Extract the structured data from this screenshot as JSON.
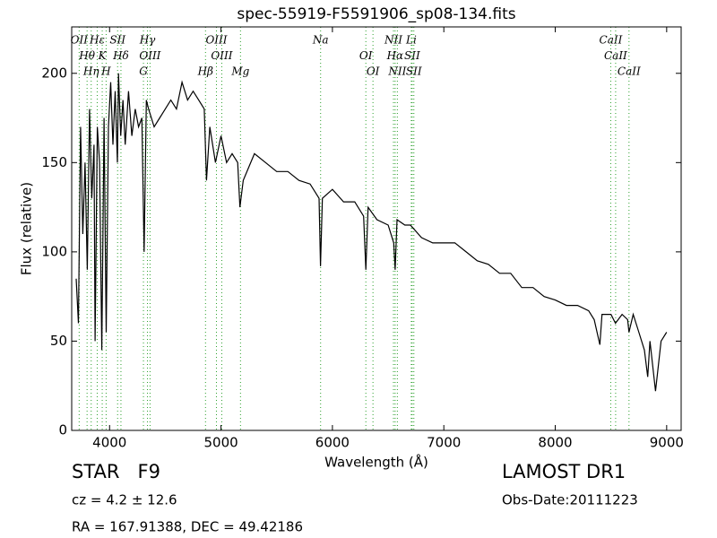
{
  "chart_data": {
    "type": "line",
    "title": "spec-55919-F5591906_sp08-134.fits",
    "xlabel": "Wavelength (Å)",
    "ylabel": "Flux (relative)",
    "xlim": [
      3660,
      9130
    ],
    "ylim": [
      0,
      226
    ],
    "xticks": [
      4000,
      5000,
      6000,
      7000,
      8000,
      9000
    ],
    "yticks": [
      0,
      50,
      100,
      150,
      200
    ],
    "color": "#000000",
    "line_color": "#2ca02c",
    "x": [
      3700,
      3720,
      3740,
      3760,
      3780,
      3800,
      3820,
      3840,
      3860,
      3870,
      3890,
      3910,
      3930,
      3950,
      3970,
      3990,
      4010,
      4030,
      4050,
      4070,
      4080,
      4100,
      4120,
      4140,
      4170,
      4200,
      4230,
      4260,
      4290,
      4310,
      4330,
      4350,
      4400,
      4450,
      4500,
      4550,
      4600,
      4650,
      4700,
      4750,
      4800,
      4850,
      4870,
      4900,
      4950,
      5000,
      5050,
      5100,
      5150,
      5170,
      5200,
      5300,
      5400,
      5500,
      5600,
      5700,
      5800,
      5880,
      5893,
      5910,
      6000,
      6100,
      6200,
      6280,
      6300,
      6320,
      6400,
      6500,
      6550,
      6563,
      6580,
      6650,
      6700,
      6800,
      6900,
      7000,
      7100,
      7200,
      7300,
      7400,
      7500,
      7600,
      7700,
      7800,
      7900,
      8000,
      8100,
      8200,
      8300,
      8350,
      8400,
      8420,
      8500,
      8540,
      8600,
      8650,
      8662,
      8700,
      8750,
      8800,
      8830,
      8850,
      8900,
      8950,
      9000
    ],
    "values": [
      85,
      60,
      170,
      110,
      150,
      90,
      180,
      130,
      160,
      50,
      170,
      150,
      45,
      175,
      55,
      170,
      195,
      160,
      190,
      150,
      200,
      165,
      185,
      160,
      190,
      165,
      180,
      170,
      175,
      100,
      185,
      180,
      170,
      175,
      180,
      185,
      180,
      195,
      185,
      190,
      185,
      180,
      140,
      170,
      150,
      165,
      150,
      155,
      150,
      125,
      140,
      155,
      150,
      145,
      145,
      140,
      138,
      130,
      92,
      130,
      135,
      128,
      128,
      120,
      90,
      125,
      118,
      115,
      105,
      90,
      118,
      115,
      115,
      108,
      105,
      105,
      105,
      100,
      95,
      93,
      88,
      88,
      80,
      80,
      75,
      73,
      70,
      70,
      67,
      62,
      48,
      65,
      65,
      60,
      65,
      62,
      55,
      65,
      55,
      45,
      30,
      50,
      22,
      50,
      55
    ],
    "lines": [
      {
        "wavelength": 3727,
        "label": "OII"
      },
      {
        "wavelength": 3798,
        "label": "Hθ"
      },
      {
        "wavelength": 3835,
        "label": "Hη"
      },
      {
        "wavelength": 3889,
        "label": "Hε"
      },
      {
        "wavelength": 3934,
        "label": "K"
      },
      {
        "wavelength": 3969,
        "label": "H"
      },
      {
        "wavelength": 4072,
        "label": "SII"
      },
      {
        "wavelength": 4102,
        "label": "Hδ"
      },
      {
        "wavelength": 4304,
        "label": "G"
      },
      {
        "wavelength": 4340,
        "label": "Hγ"
      },
      {
        "wavelength": 4363,
        "label": "OIII"
      },
      {
        "wavelength": 4861,
        "label": "Hβ"
      },
      {
        "wavelength": 4959,
        "label": "OIII"
      },
      {
        "wavelength": 5007,
        "label": "OIII"
      },
      {
        "wavelength": 5175,
        "label": "Mg"
      },
      {
        "wavelength": 5894,
        "label": "Na"
      },
      {
        "wavelength": 6300,
        "label": "OI"
      },
      {
        "wavelength": 6364,
        "label": "OI"
      },
      {
        "wavelength": 6548,
        "label": "NII"
      },
      {
        "wavelength": 6563,
        "label": "Hα"
      },
      {
        "wavelength": 6583,
        "label": "NII"
      },
      {
        "wavelength": 6708,
        "label": "Li"
      },
      {
        "wavelength": 6716,
        "label": "SII"
      },
      {
        "wavelength": 6731,
        "label": "SII"
      },
      {
        "wavelength": 8498,
        "label": "CaII"
      },
      {
        "wavelength": 8542,
        "label": "CaII"
      },
      {
        "wavelength": 8662,
        "label": "CaII"
      }
    ],
    "annotations": [
      "STAR   F9",
      "cz = 4.2 ± 12.6",
      "RA = 167.91388, DEC = 49.42186",
      "LAMOST DR1",
      "Obs-Date:20111223"
    ]
  }
}
